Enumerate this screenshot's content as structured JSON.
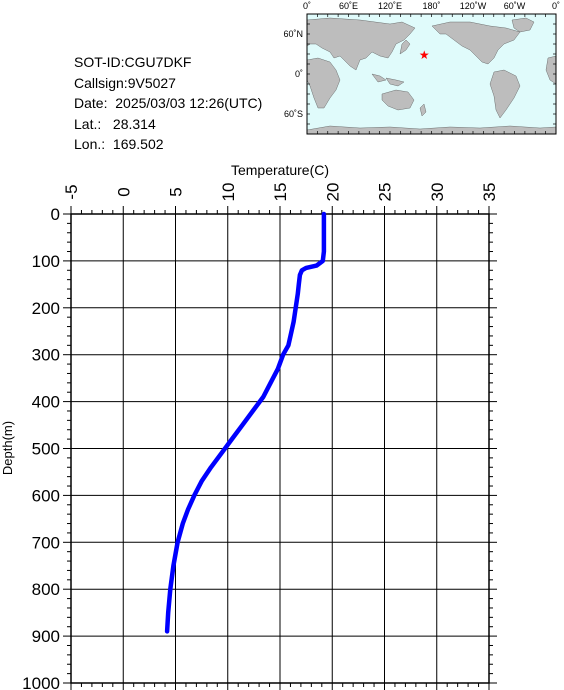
{
  "info": {
    "sot_id": "SOT-ID:CGU7DKF",
    "callsign": "Callsign:9V5027",
    "date": "Date:  2025/03/03 12:26(UTC)",
    "lat": "Lat.:   28.314",
    "lon": "Lon.:  169.502"
  },
  "map": {
    "top_labels": [
      "0˚",
      "60˚E",
      "120˚E",
      "180˚",
      "120˚W",
      "60˚W",
      "0˚"
    ],
    "left_labels": [
      "60˚N",
      "0˚",
      "60˚S"
    ],
    "marker_lat": 28.314,
    "marker_lon": 169.502,
    "ocean_color": "#e0fbfb",
    "land_color": "#bdbdbd",
    "marker_color": "#ff0000"
  },
  "chart_data": {
    "type": "line",
    "xlabel": "Temperature(C)",
    "ylabel": "Depth(m)",
    "xlim": [
      -5,
      35
    ],
    "ylim": [
      0,
      1000
    ],
    "x_ticks": [
      -5,
      0,
      5,
      10,
      15,
      20,
      25,
      30,
      35
    ],
    "y_ticks": [
      0,
      100,
      200,
      300,
      400,
      500,
      600,
      700,
      800,
      900,
      1000
    ],
    "line_color": "#0000ff",
    "series": [
      {
        "depth": [
          0,
          20,
          50,
          80,
          100,
          110,
          115,
          120,
          125,
          130,
          150,
          170,
          200,
          230,
          260,
          280,
          300,
          330,
          360,
          390,
          420,
          450,
          480,
          510,
          540,
          570,
          600,
          630,
          660,
          700,
          750,
          800,
          850,
          890
        ],
        "temperature": [
          19.2,
          19.2,
          19.2,
          19.2,
          19.1,
          18.5,
          17.5,
          17.1,
          17.0,
          16.9,
          16.8,
          16.7,
          16.5,
          16.3,
          16.0,
          15.8,
          15.3,
          14.8,
          14.1,
          13.4,
          12.4,
          11.4,
          10.4,
          9.4,
          8.4,
          7.5,
          6.8,
          6.2,
          5.7,
          5.2,
          4.8,
          4.5,
          4.3,
          4.2
        ]
      }
    ]
  }
}
